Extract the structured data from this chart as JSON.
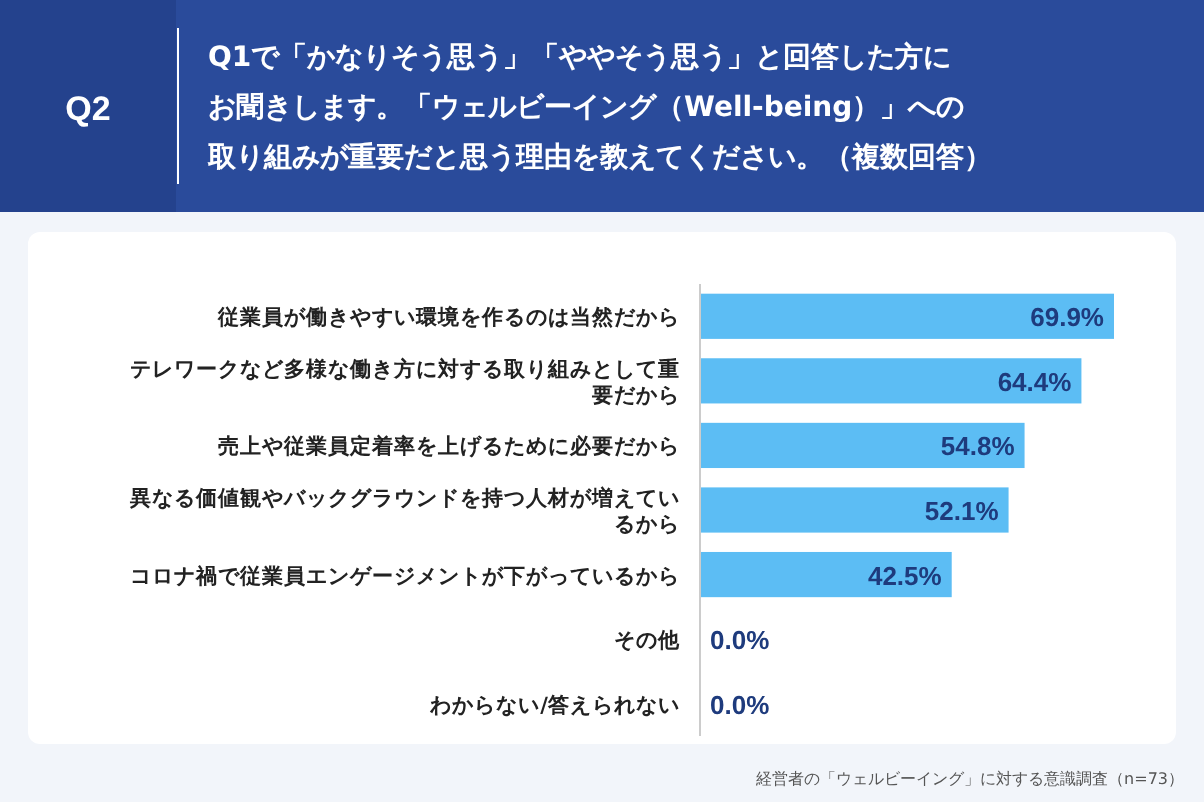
{
  "chart_data": {
    "type": "bar",
    "orientation": "horizontal",
    "title": "Q1で「かなりそう思う」「ややそう思う」と回答した方にお聞きします。「ウェルビーイング（Well-being）」への取り組みが重要だと思う理由を教えてください。（複数回答）",
    "annotations": [
      "Q2",
      "経営者の「ウェルビーイング」に対する意識調査（n=73）"
    ],
    "categories": [
      "従業員が働きやすい環境を作るのは当然だから",
      "テレワークなど多様な働き方に対する取り組みとして重要だから",
      "売上や従業員定着率を上げるために必要だから",
      "異なる価値観やバックグラウンドを持つ人材が増えているから",
      "コロナ禍で従業員エンゲージメントが下がっているから",
      "その他",
      "わからない/答えられない"
    ],
    "values": [
      69.9,
      64.4,
      54.8,
      52.1,
      42.5,
      0,
      0
    ],
    "value_labels": [
      "69.9%",
      "64.4%",
      "54.8%",
      "52.1%",
      "42.5%",
      "0.0%",
      "0.0%"
    ],
    "color": "#5cbdf4",
    "tick_labels": "y"
  }
}
